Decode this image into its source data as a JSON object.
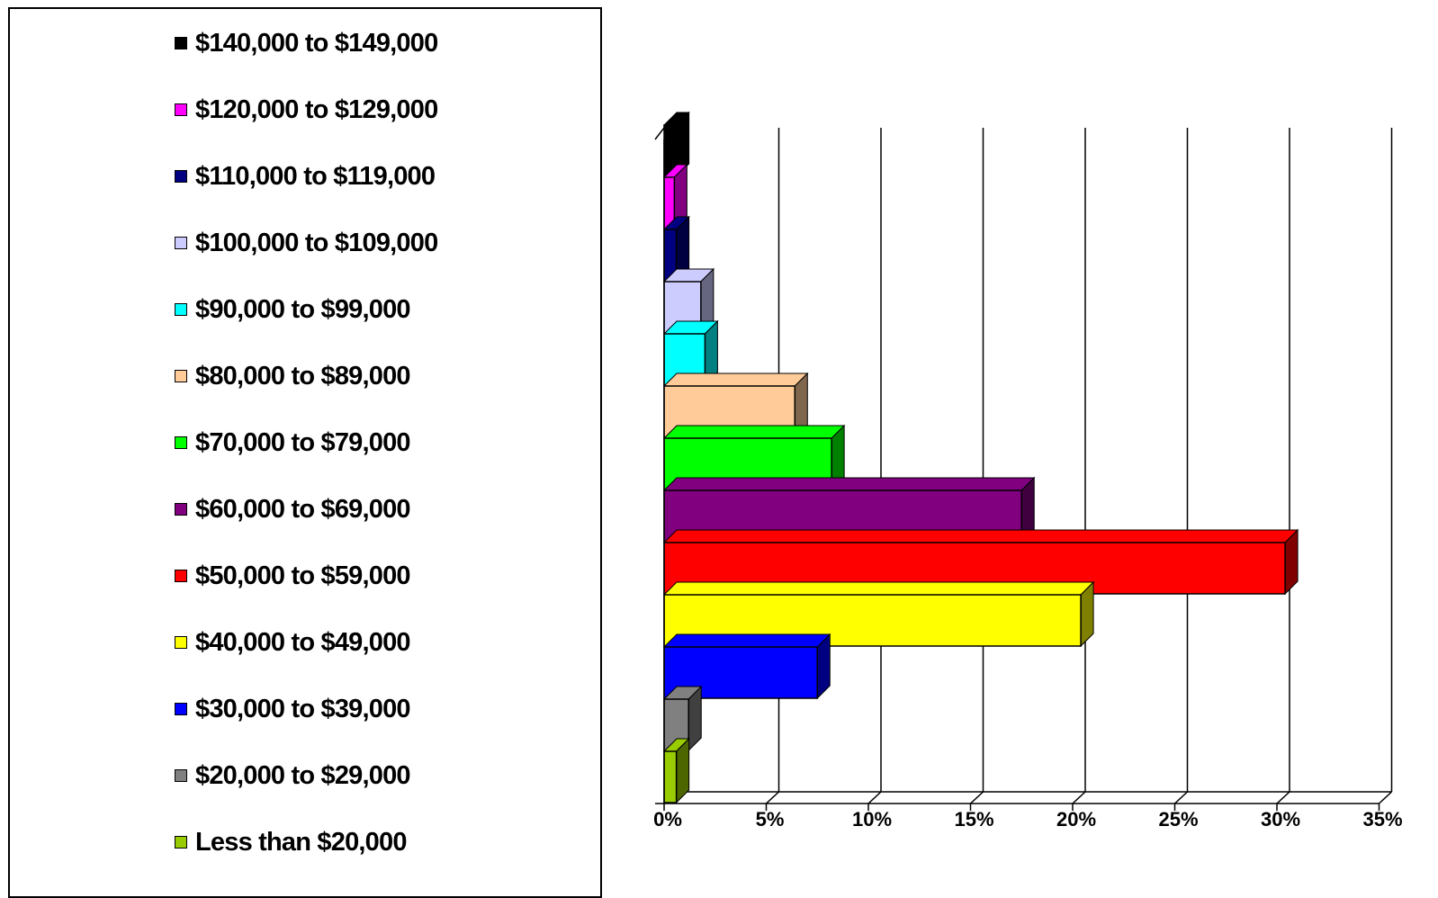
{
  "chart_data": {
    "type": "bar",
    "orientation": "horizontal",
    "style": "3d",
    "title": "",
    "xlabel": "",
    "ylabel": "",
    "xlim": [
      0,
      35
    ],
    "x_tick_labels": [
      "0%",
      "5%",
      "10%",
      "15%",
      "20%",
      "25%",
      "30%",
      "35%"
    ],
    "grid": "vertical gridlines",
    "legend_position": "left",
    "categories": [
      "Less than $20,000",
      "$20,000 to $29,000",
      "$30,000 to $39,000",
      "$40,000 to $49,000",
      "$50,000 to $59,000",
      "$60,000 to $69,000",
      "$70,000 to $79,000",
      "$80,000 to $89,000",
      "$90,000 to $99,000",
      "$100,000 to $109,000",
      "$110,000 to $119,000",
      "$120,000 to $129,000",
      "$140,000 to $149,000"
    ],
    "values": [
      0.6,
      1.2,
      7.5,
      20.4,
      30.4,
      17.5,
      8.2,
      6.4,
      2.0,
      1.8,
      0.6,
      0.5,
      0.6
    ],
    "colors": [
      "#99cc00",
      "#808080",
      "#0000ff",
      "#ffff00",
      "#ff0000",
      "#800080",
      "#00ff00",
      "#ffcc99",
      "#00ffff",
      "#ccccff",
      "#000080",
      "#ff00ff",
      "#000000"
    ]
  }
}
